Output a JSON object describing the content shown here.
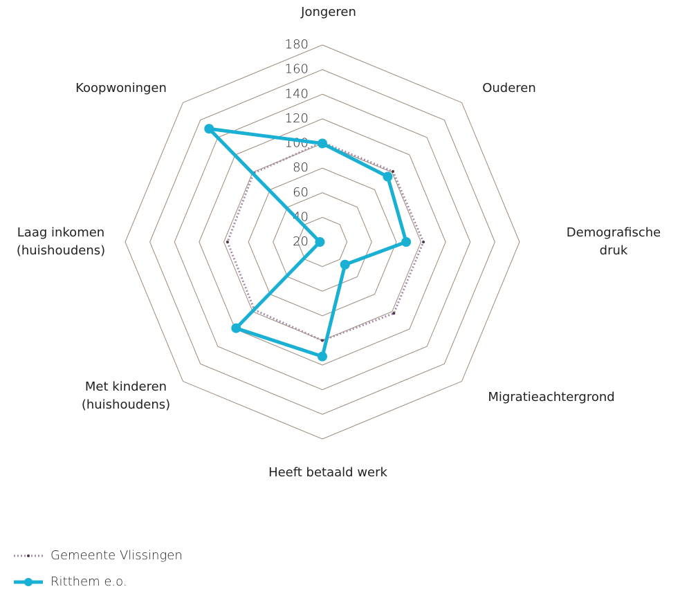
{
  "chart_data": {
    "type": "radar",
    "categories": [
      "Jongeren",
      "Ouderen",
      "Demografische druk",
      "Migratieachtergrond",
      "Heeft betaald werk",
      "Met kinderen\n(huishoudens)",
      "Laag inkomen\n(huishoudens)",
      "Koopwoningen"
    ],
    "series": [
      {
        "name": "Gemeente Vlissingen",
        "color": "#a58aa6",
        "values": [
          101,
          101,
          102,
          102,
          100,
          98,
          97,
          99
        ]
      },
      {
        "name": "Ritthem e.o.",
        "color": "#1ab0d4",
        "values": [
          100,
          95,
          88,
          46,
          113,
          119,
          22,
          150
        ]
      }
    ],
    "ylim": [
      20,
      180
    ],
    "yticks": [
      20,
      40,
      60,
      80,
      100,
      120,
      140,
      160,
      180
    ],
    "grid": true,
    "legend": "bottom-left"
  }
}
